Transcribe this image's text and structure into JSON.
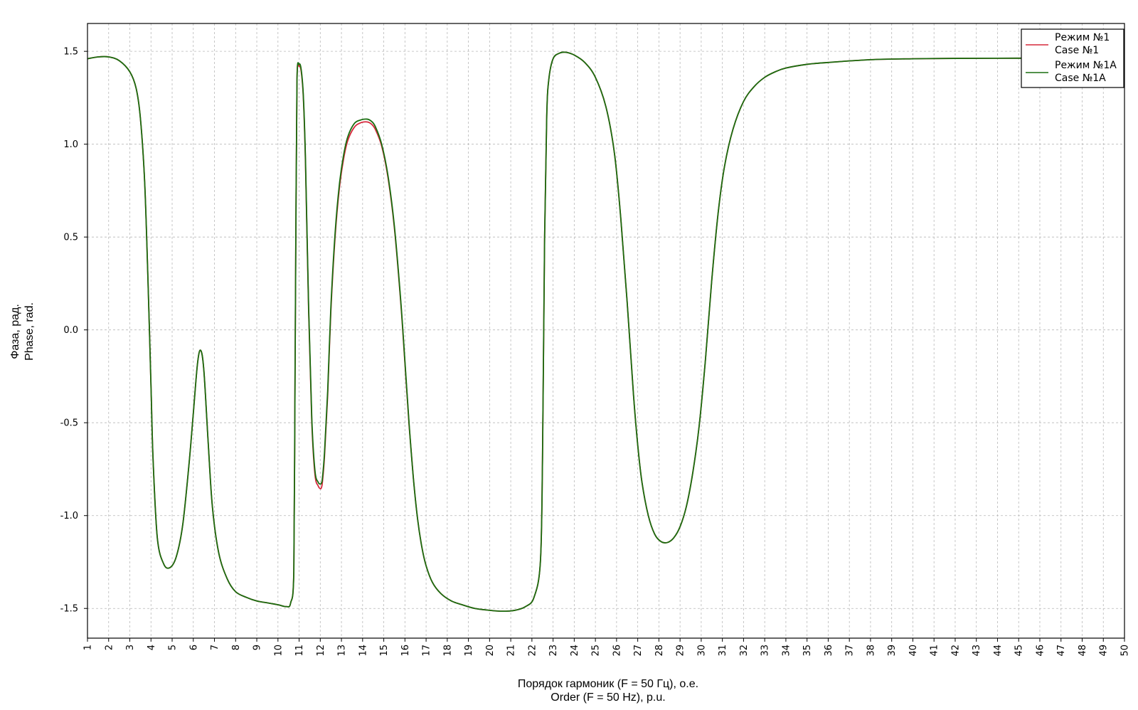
{
  "chart_data": {
    "type": "line",
    "title": "",
    "xlabel": [
      "Порядок гармоник (F = 50 Гц), о.е.",
      "Order (F = 50 Hz), p.u."
    ],
    "ylabel": [
      "Фаза, рад.",
      "Phase, rad."
    ],
    "xlim": [
      1,
      50
    ],
    "ylim": [
      -1.66,
      1.65
    ],
    "xticks": [
      1,
      2,
      3,
      4,
      5,
      6,
      7,
      8,
      9,
      10,
      11,
      12,
      13,
      14,
      15,
      16,
      17,
      18,
      19,
      20,
      21,
      22,
      23,
      24,
      25,
      26,
      27,
      28,
      29,
      30,
      31,
      32,
      33,
      34,
      35,
      36,
      37,
      38,
      39,
      40,
      41,
      42,
      43,
      44,
      45,
      46,
      47,
      48,
      49,
      50
    ],
    "yticks": [
      1.5,
      1.0,
      0.5,
      0.0,
      -0.5,
      -1.0,
      -1.5
    ],
    "ytick_labels": [
      "1.5",
      "1.0",
      "0.5",
      "0.0",
      "-0.5",
      "-1.0",
      "-1.5"
    ],
    "grid": true,
    "legend_position": "top-right",
    "series": [
      {
        "name": "Режим №1\nCase №1",
        "legend_lines": [
          "Режим №1",
          "Case №1"
        ],
        "color": "#d6283c",
        "x": [
          1.0,
          1.5,
          2.0,
          2.5,
          3.0,
          3.3,
          3.5,
          3.7,
          3.85,
          4.0,
          4.1,
          4.3,
          4.6,
          4.9,
          5.2,
          5.5,
          5.8,
          6.0,
          6.2,
          6.35,
          6.5,
          6.7,
          6.9,
          7.2,
          7.6,
          8.0,
          8.5,
          9.0,
          9.5,
          10.0,
          10.4,
          10.6,
          10.75,
          10.8,
          10.85,
          10.9,
          11.0,
          11.1,
          11.2,
          11.3,
          11.45,
          11.6,
          11.75,
          11.9,
          12.0,
          12.05,
          12.1,
          12.2,
          12.35,
          12.5,
          12.7,
          12.9,
          13.1,
          13.3,
          13.6,
          13.9,
          14.2,
          14.4,
          14.6,
          14.9,
          15.2,
          15.5,
          15.8,
          16.0,
          16.2,
          16.4,
          16.6,
          16.8,
          17.0,
          17.3,
          17.7,
          18.2,
          18.7,
          19.3,
          20.0,
          20.6,
          21.2,
          21.7,
          22.1,
          22.4,
          22.5,
          22.6,
          22.7,
          22.8,
          23.0,
          23.3,
          23.6,
          24.0,
          24.5,
          25.0,
          25.5,
          25.9,
          26.2,
          26.5,
          26.8,
          27.0,
          27.2,
          27.5,
          27.8,
          28.1,
          28.4,
          28.7,
          29.0,
          29.3,
          29.6,
          29.9,
          30.2,
          30.5,
          30.8,
          31.1,
          31.5,
          32.0,
          32.5,
          33.0,
          33.5,
          34.0,
          35.0,
          36.0,
          38.0,
          40.0,
          42.0,
          45.0,
          48.0,
          50.0
        ],
        "y": [
          1.46,
          1.47,
          1.47,
          1.45,
          1.39,
          1.3,
          1.14,
          0.8,
          0.3,
          -0.3,
          -0.7,
          -1.12,
          -1.26,
          -1.28,
          -1.22,
          -1.05,
          -0.72,
          -0.45,
          -0.18,
          -0.11,
          -0.22,
          -0.6,
          -0.95,
          -1.2,
          -1.34,
          -1.41,
          -1.44,
          -1.46,
          -1.47,
          -1.48,
          -1.49,
          -1.47,
          -1.3,
          -0.4,
          0.6,
          1.35,
          1.42,
          1.39,
          1.25,
          0.9,
          0.1,
          -0.5,
          -0.78,
          -0.84,
          -0.855,
          -0.85,
          -0.82,
          -0.68,
          -0.35,
          0.1,
          0.5,
          0.76,
          0.92,
          1.02,
          1.09,
          1.115,
          1.12,
          1.11,
          1.08,
          0.99,
          0.82,
          0.55,
          0.15,
          -0.18,
          -0.52,
          -0.8,
          -1.02,
          -1.17,
          -1.27,
          -1.36,
          -1.42,
          -1.46,
          -1.48,
          -1.5,
          -1.51,
          -1.515,
          -1.51,
          -1.49,
          -1.44,
          -1.25,
          -0.7,
          0.5,
          1.15,
          1.35,
          1.46,
          1.49,
          1.495,
          1.48,
          1.44,
          1.36,
          1.2,
          0.95,
          0.6,
          0.15,
          -0.35,
          -0.62,
          -0.82,
          -1.0,
          -1.1,
          -1.14,
          -1.145,
          -1.12,
          -1.06,
          -0.95,
          -0.77,
          -0.52,
          -0.16,
          0.27,
          0.63,
          0.88,
          1.08,
          1.23,
          1.31,
          1.36,
          1.39,
          1.41,
          1.43,
          1.44,
          1.455,
          1.46,
          1.462,
          1.463,
          1.463,
          1.463
        ]
      },
      {
        "name": "Режим №1A\nCase №1A",
        "legend_lines": [
          "Режим №1A",
          "Case №1A"
        ],
        "color": "#1a6e10",
        "x": [
          1.0,
          1.5,
          2.0,
          2.5,
          3.0,
          3.3,
          3.5,
          3.7,
          3.85,
          4.0,
          4.1,
          4.3,
          4.6,
          4.9,
          5.2,
          5.5,
          5.8,
          6.0,
          6.2,
          6.35,
          6.5,
          6.7,
          6.9,
          7.2,
          7.6,
          8.0,
          8.5,
          9.0,
          9.5,
          10.0,
          10.4,
          10.6,
          10.75,
          10.8,
          10.85,
          10.9,
          11.0,
          11.1,
          11.2,
          11.3,
          11.45,
          11.6,
          11.75,
          11.9,
          12.0,
          12.05,
          12.1,
          12.2,
          12.35,
          12.5,
          12.7,
          12.9,
          13.1,
          13.3,
          13.6,
          13.9,
          14.2,
          14.4,
          14.6,
          14.9,
          15.2,
          15.5,
          15.8,
          16.0,
          16.2,
          16.4,
          16.6,
          16.8,
          17.0,
          17.3,
          17.7,
          18.2,
          18.7,
          19.3,
          20.0,
          20.6,
          21.2,
          21.7,
          22.1,
          22.4,
          22.5,
          22.6,
          22.7,
          22.8,
          23.0,
          23.3,
          23.6,
          24.0,
          24.5,
          25.0,
          25.5,
          25.9,
          26.2,
          26.5,
          26.8,
          27.0,
          27.2,
          27.5,
          27.8,
          28.1,
          28.4,
          28.7,
          29.0,
          29.3,
          29.6,
          29.9,
          30.2,
          30.5,
          30.8,
          31.1,
          31.5,
          32.0,
          32.5,
          33.0,
          33.5,
          34.0,
          35.0,
          36.0,
          38.0,
          40.0,
          42.0,
          45.0,
          48.0,
          50.0
        ],
        "y": [
          1.46,
          1.47,
          1.47,
          1.45,
          1.39,
          1.3,
          1.14,
          0.8,
          0.3,
          -0.3,
          -0.7,
          -1.12,
          -1.26,
          -1.28,
          -1.22,
          -1.05,
          -0.72,
          -0.45,
          -0.18,
          -0.11,
          -0.22,
          -0.6,
          -0.95,
          -1.2,
          -1.34,
          -1.41,
          -1.44,
          -1.46,
          -1.47,
          -1.48,
          -1.49,
          -1.47,
          -1.3,
          -0.4,
          0.6,
          1.35,
          1.43,
          1.4,
          1.26,
          0.92,
          0.12,
          -0.48,
          -0.76,
          -0.82,
          -0.83,
          -0.825,
          -0.8,
          -0.66,
          -0.33,
          0.12,
          0.52,
          0.78,
          0.94,
          1.04,
          1.11,
          1.13,
          1.135,
          1.125,
          1.095,
          1.0,
          0.83,
          0.56,
          0.16,
          -0.17,
          -0.51,
          -0.8,
          -1.02,
          -1.17,
          -1.27,
          -1.36,
          -1.42,
          -1.46,
          -1.48,
          -1.5,
          -1.51,
          -1.515,
          -1.51,
          -1.49,
          -1.44,
          -1.25,
          -0.7,
          0.5,
          1.15,
          1.35,
          1.46,
          1.49,
          1.495,
          1.48,
          1.44,
          1.36,
          1.2,
          0.95,
          0.6,
          0.15,
          -0.35,
          -0.62,
          -0.82,
          -1.0,
          -1.1,
          -1.14,
          -1.145,
          -1.12,
          -1.06,
          -0.95,
          -0.77,
          -0.52,
          -0.16,
          0.27,
          0.63,
          0.88,
          1.08,
          1.23,
          1.31,
          1.36,
          1.39,
          1.41,
          1.43,
          1.44,
          1.455,
          1.46,
          1.462,
          1.463,
          1.463,
          1.463
        ]
      }
    ]
  }
}
